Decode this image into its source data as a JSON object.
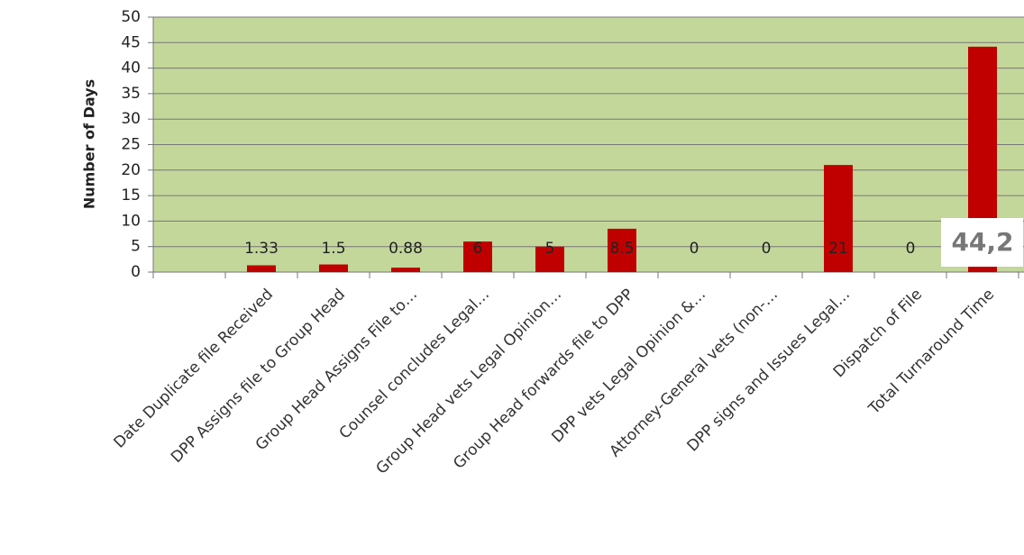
{
  "chart_data": {
    "type": "bar",
    "y_label": "Number of Days",
    "categories": [
      null,
      "Date Duplicate file Received",
      "DPP Assigns file to Group Head",
      "Group Head Assigns File to…",
      "Counsel concludes Legal…",
      "Group Head vets Legal Opinion…",
      "Group Head forwards file to DPP",
      "DPP vets Legal Opinion &…",
      "Attorney-General vets (non-…",
      "DPP signs and Issues Legal…",
      "Dispatch of File",
      "Total Turnaround Time"
    ],
    "values": [
      null,
      1.33,
      1.5,
      0.88,
      6,
      5,
      8.5,
      0,
      0,
      21,
      0,
      44.2
    ],
    "value_labels": [
      null,
      "1.33",
      "1.5",
      "0.88",
      "6",
      "5",
      "8.5",
      "0",
      "0",
      "21",
      "0",
      "44,2"
    ],
    "color": "#c00000",
    "background": "#c4d79b",
    "ylim": [
      0,
      50
    ],
    "yticks": [
      0,
      5,
      10,
      15,
      20,
      25,
      30,
      35,
      40,
      45,
      50
    ],
    "grid": true
  }
}
